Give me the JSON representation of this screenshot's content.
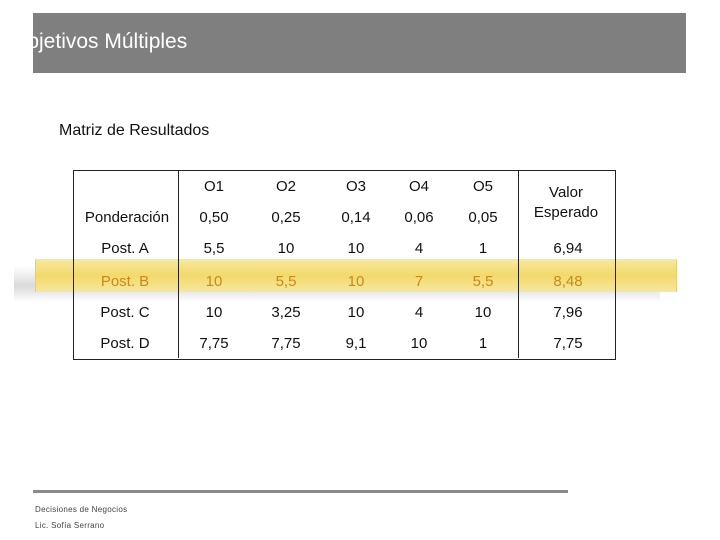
{
  "header": {
    "title": "Objetivos Múltiples"
  },
  "subtitle": "Matriz de Resultados",
  "table": {
    "columns": [
      "O1",
      "O2",
      "O3",
      "O4",
      "O5"
    ],
    "value_header": [
      "Valor",
      "Esperado"
    ],
    "weights_label": "Ponderación",
    "weights": [
      "0,50",
      "0,25",
      "0,14",
      "0,06",
      "0,05"
    ],
    "rows": [
      {
        "label": "Post. A",
        "cells": [
          "5,5",
          "10",
          "10",
          "4",
          "1"
        ],
        "value": "6,94"
      },
      {
        "label": "Post. B",
        "cells": [
          "10",
          "5,5",
          "10",
          "7",
          "5,5"
        ],
        "value": "8,48",
        "highlighted": true
      },
      {
        "label": "Post. C",
        "cells": [
          "10",
          "3,25",
          "10",
          "4",
          "10"
        ],
        "value": "7,96"
      },
      {
        "label": "Post. D",
        "cells": [
          "7,75",
          "7,75",
          "9,1",
          "10",
          "1"
        ],
        "value": "7,75"
      }
    ]
  },
  "footer": {
    "line1": "Decisiones de Negocios",
    "line2": "Lic. Sofía Serrano"
  },
  "colors": {
    "header_bg": "#7f7f7f",
    "highlight": "#f3d96a",
    "highlight_text": "#c8891a"
  }
}
